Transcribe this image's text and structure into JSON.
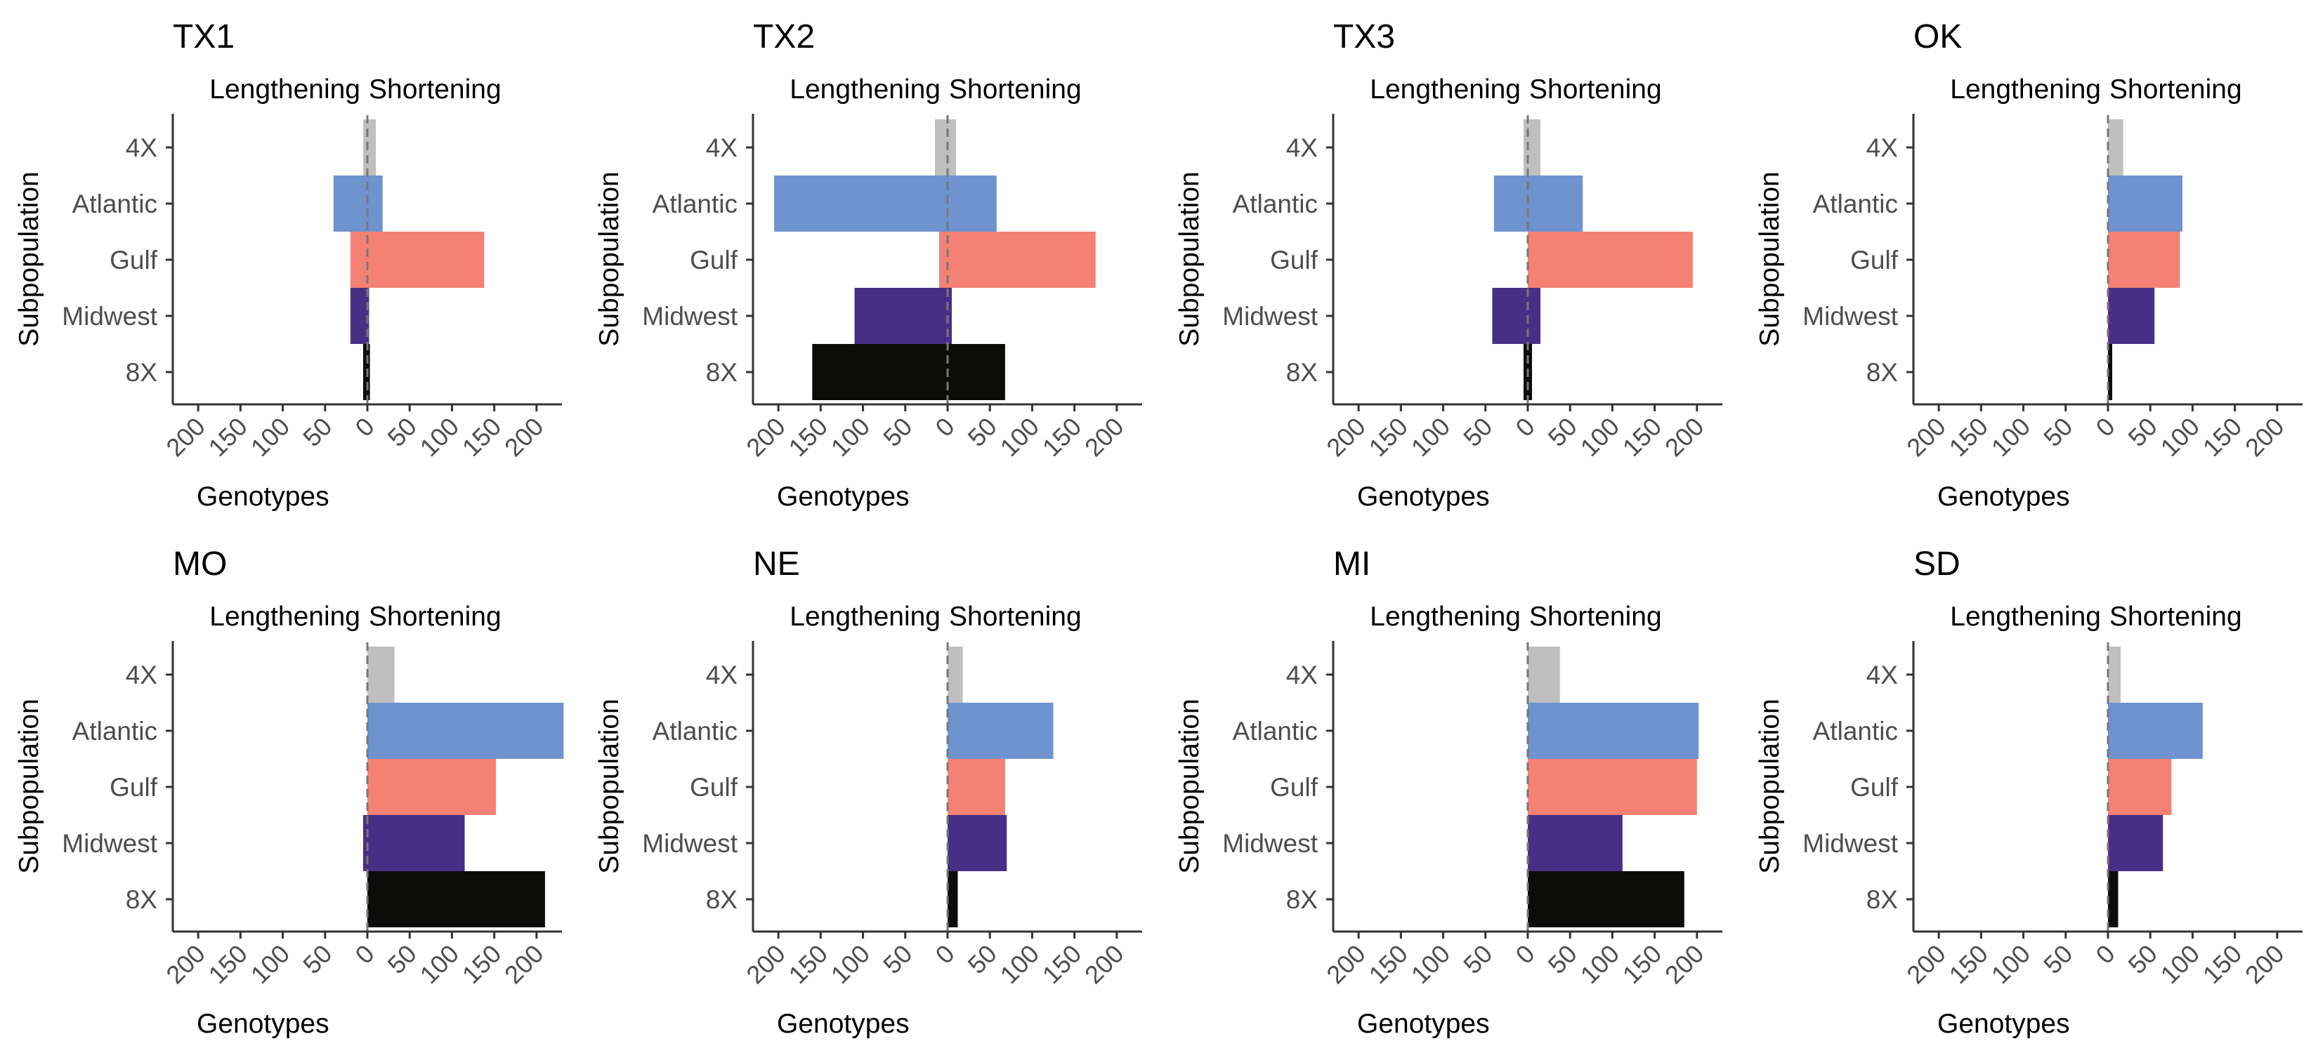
{
  "chart_data": {
    "type": "bar",
    "orientation": "horizontal-diverging",
    "shared": {
      "left_label": "Lengthening",
      "right_label": "Shortening",
      "xlabel": "Genotypes",
      "ylabel": "Subpopulation",
      "categories": [
        "4X",
        "Atlantic",
        "Gulf",
        "Midwest",
        "8X"
      ],
      "xlim": [
        -230,
        230
      ],
      "xticks": [
        {
          "value": -200,
          "label": "200"
        },
        {
          "value": -150,
          "label": "150"
        },
        {
          "value": -100,
          "label": "100"
        },
        {
          "value": -50,
          "label": "50"
        },
        {
          "value": 0,
          "label": "0"
        },
        {
          "value": 50,
          "label": "50"
        },
        {
          "value": 100,
          "label": "100"
        },
        {
          "value": 150,
          "label": "150"
        },
        {
          "value": 200,
          "label": "200"
        }
      ],
      "colors": {
        "4X": "#bfbfbf",
        "Atlantic": "#6f93cf",
        "Gulf": "#f48174",
        "Midwest": "#482f86",
        "8X": "#0c0c0a"
      },
      "grid": false,
      "legend": "none"
    },
    "panels": [
      {
        "title": "TX1",
        "lengthening": [
          5,
          40,
          20,
          20,
          5
        ],
        "shortening": [
          10,
          18,
          138,
          2,
          3
        ]
      },
      {
        "title": "TX2",
        "lengthening": [
          15,
          205,
          10,
          110,
          160
        ],
        "shortening": [
          10,
          58,
          175,
          5,
          68
        ]
      },
      {
        "title": "TX3",
        "lengthening": [
          5,
          40,
          0,
          42,
          5
        ],
        "shortening": [
          15,
          65,
          195,
          15,
          5
        ]
      },
      {
        "title": "OK",
        "lengthening": [
          0,
          0,
          0,
          0,
          0
        ],
        "shortening": [
          18,
          88,
          85,
          55,
          5
        ]
      },
      {
        "title": "MO",
        "lengthening": [
          0,
          0,
          0,
          5,
          0
        ],
        "shortening": [
          32,
          232,
          152,
          115,
          210
        ]
      },
      {
        "title": "NE",
        "lengthening": [
          0,
          0,
          0,
          0,
          0
        ],
        "shortening": [
          18,
          125,
          68,
          70,
          12
        ]
      },
      {
        "title": "MI",
        "lengthening": [
          0,
          0,
          0,
          0,
          0
        ],
        "shortening": [
          38,
          202,
          200,
          112,
          185
        ]
      },
      {
        "title": "SD",
        "lengthening": [
          0,
          0,
          0,
          0,
          0
        ],
        "shortening": [
          15,
          112,
          75,
          65,
          12
        ]
      }
    ]
  }
}
